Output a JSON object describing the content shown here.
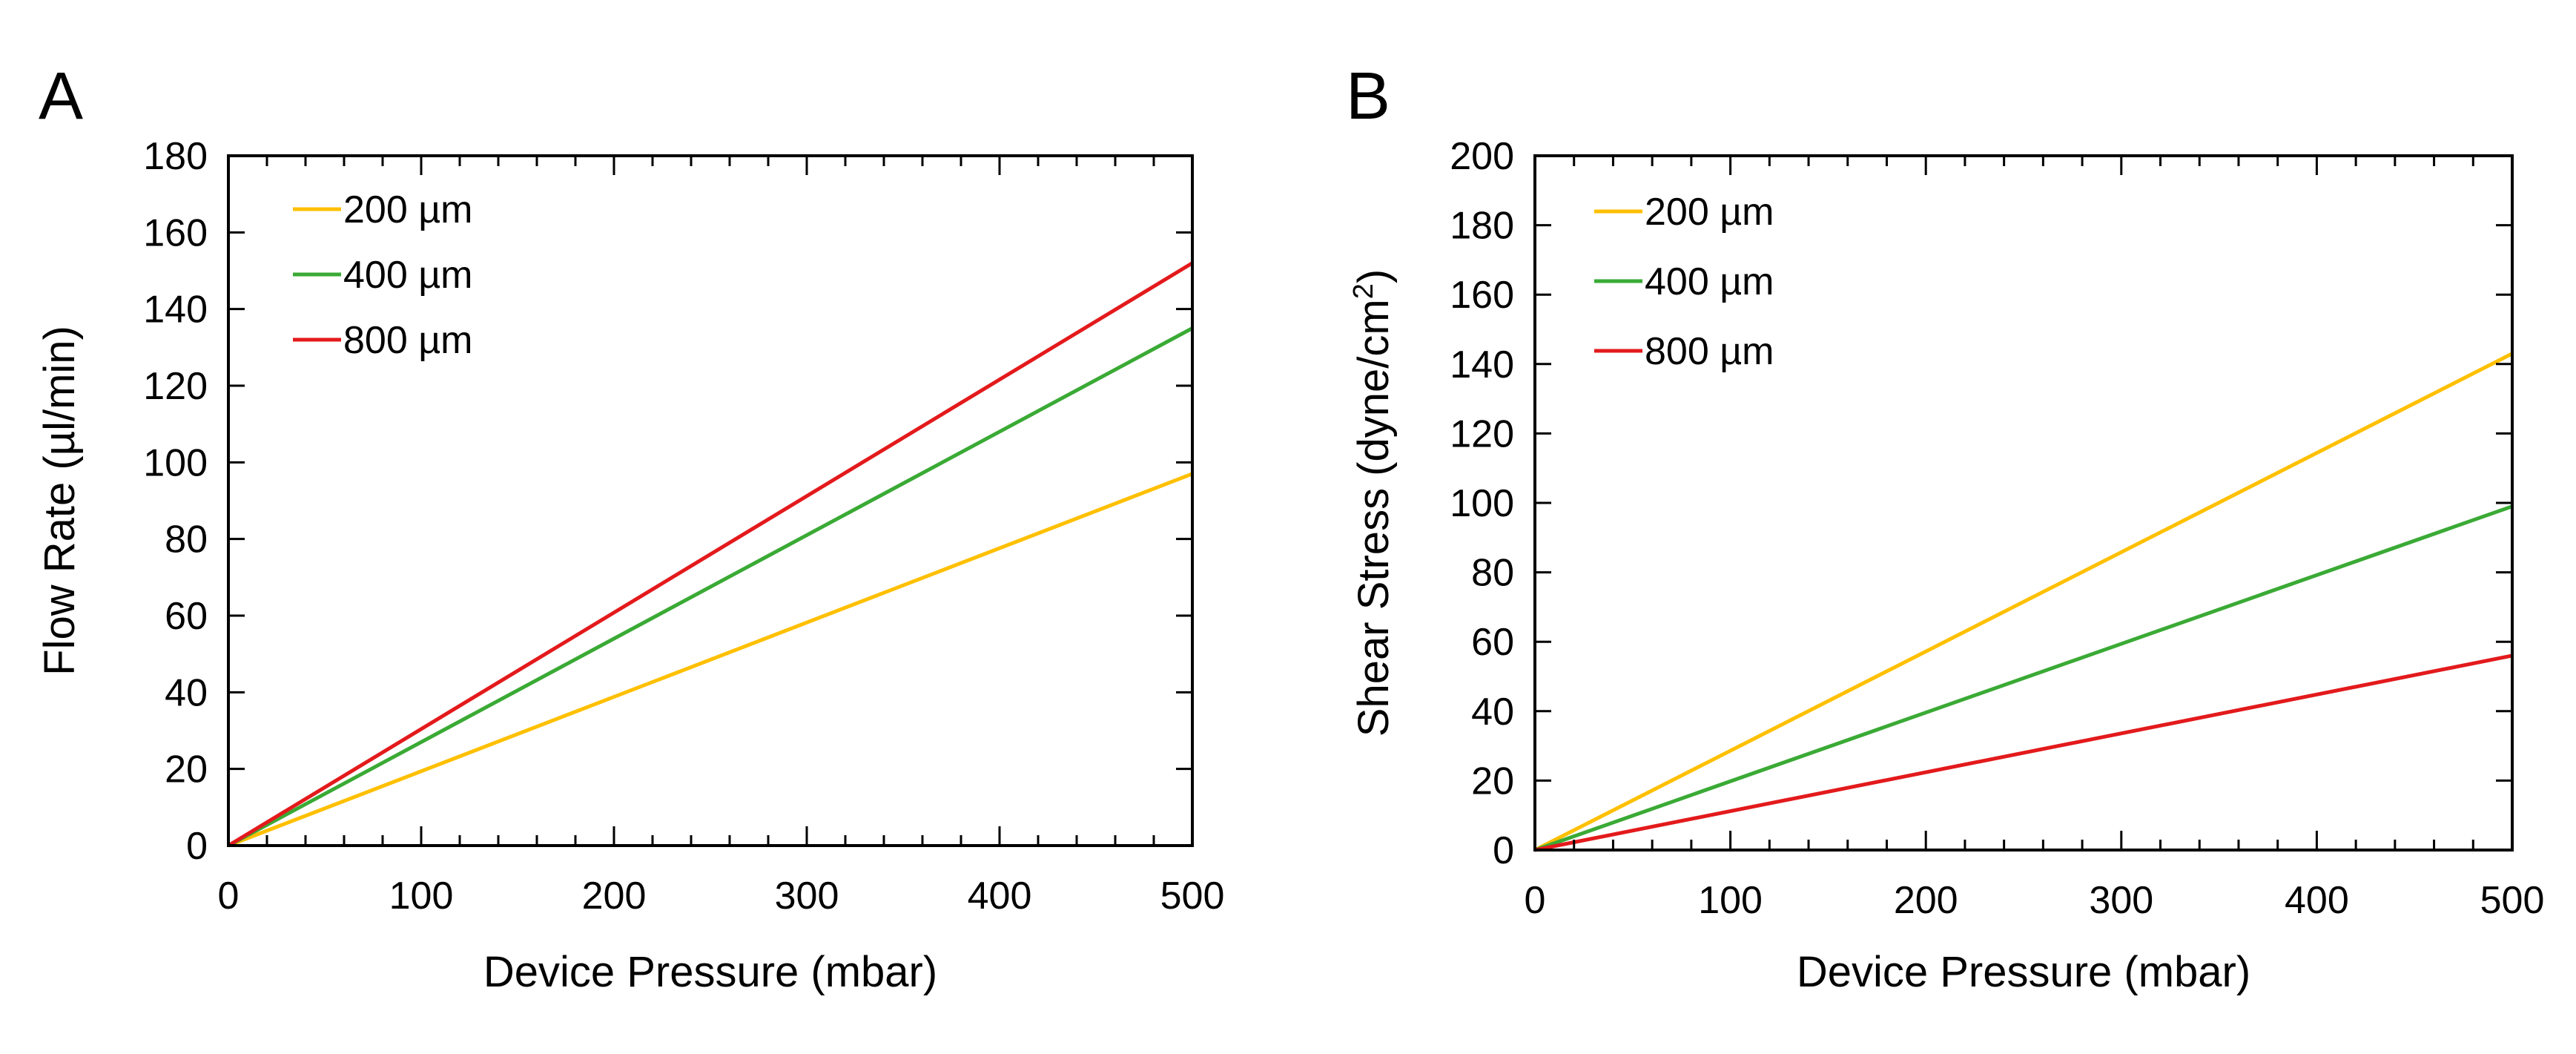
{
  "chart_data": [
    {
      "panel": "A",
      "type": "line",
      "title": "",
      "xlabel": "Device Pressure (mbar)",
      "ylabel": "Flow Rate (µl/min)",
      "xlim": [
        0,
        500
      ],
      "ylim": [
        0,
        180
      ],
      "xticks": [
        0,
        100,
        200,
        300,
        400,
        500
      ],
      "yticks": [
        0,
        20,
        40,
        60,
        80,
        100,
        120,
        140,
        160,
        180
      ],
      "legend": "top-left",
      "series": [
        {
          "name": "200 µm",
          "color": "#FFC000",
          "x": [
            0,
            500
          ],
          "y": [
            0,
            97
          ]
        },
        {
          "name": "400 µm",
          "color": "#3AAA35",
          "x": [
            0,
            500
          ],
          "y": [
            0,
            135
          ]
        },
        {
          "name": "800 µm",
          "color": "#E31A1C",
          "x": [
            0,
            500
          ],
          "y": [
            0,
            152
          ]
        }
      ]
    },
    {
      "panel": "B",
      "type": "line",
      "title": "",
      "xlabel": "Device Pressure (mbar)",
      "ylabel": "Shear Stress (dyne/cm",
      "ylabel_superscript": "2",
      "ylabel_suffix": ")",
      "xlim": [
        0,
        500
      ],
      "ylim": [
        0,
        200
      ],
      "xticks": [
        0,
        100,
        200,
        300,
        400,
        500
      ],
      "yticks": [
        0,
        20,
        40,
        60,
        80,
        100,
        120,
        140,
        160,
        180,
        200
      ],
      "legend": "top-left",
      "series": [
        {
          "name": "200 µm",
          "color": "#FFC000",
          "x": [
            0,
            500
          ],
          "y": [
            0,
            143
          ]
        },
        {
          "name": "400 µm",
          "color": "#3AAA35",
          "x": [
            0,
            500
          ],
          "y": [
            0,
            99
          ]
        },
        {
          "name": "800 µm",
          "color": "#E31A1C",
          "x": [
            0,
            500
          ],
          "y": [
            0,
            56
          ]
        }
      ]
    }
  ]
}
